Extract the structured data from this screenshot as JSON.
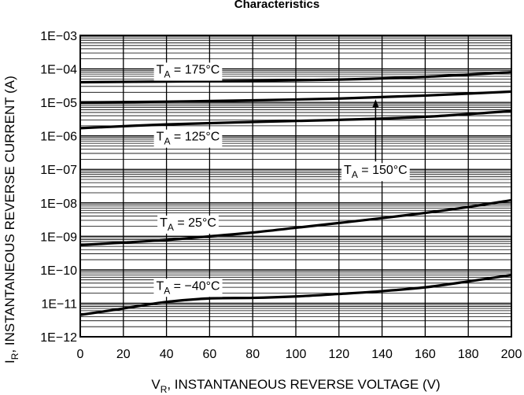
{
  "chart_data": {
    "type": "line",
    "title": "Characteristics",
    "xlabel": {
      "main": "V",
      "sub": "R",
      "rest": ", INSTANTANEOUS REVERSE VOLTAGE (V)"
    },
    "ylabel": {
      "main": "I",
      "sub": "R",
      "rest": ", INSTANTANEOUS REVERSE CURRENT (A)"
    },
    "x_ticks": [
      "0",
      "20",
      "40",
      "60",
      "80",
      "100",
      "120",
      "140",
      "160",
      "180",
      "200"
    ],
    "y_ticks": [
      "1E−12",
      "1E−11",
      "1E−10",
      "1E−09",
      "1E−08",
      "1E−07",
      "1E−06",
      "1E−05",
      "1E−04",
      "1E−03"
    ],
    "xlim": [
      0,
      200
    ],
    "ylim": [
      1e-12,
      0.001
    ],
    "y_scale": "log",
    "grid": true,
    "series": [
      {
        "name": "T_A = 175°C",
        "label_main": "T",
        "label_sub": "A",
        "label_rest": " = 175°C",
        "x": [
          0,
          40,
          80,
          120,
          160,
          200
        ],
        "y": [
          4e-05,
          4.2e-05,
          4.4e-05,
          4.8e-05,
          5.8e-05,
          8e-05
        ]
      },
      {
        "name": "T_A = 150°C",
        "label_main": "T",
        "label_sub": "A",
        "label_rest": " = 150°C",
        "x": [
          0,
          40,
          80,
          120,
          160,
          200
        ],
        "y": [
          1e-05,
          1.05e-05,
          1.15e-05,
          1.3e-05,
          1.6e-05,
          2.1e-05
        ]
      },
      {
        "name": "T_A = 125°C",
        "label_main": "T",
        "label_sub": "A",
        "label_rest": " = 125°C",
        "x": [
          0,
          40,
          80,
          120,
          160,
          200
        ],
        "y": [
          1.7e-06,
          2.2e-06,
          2.6e-06,
          3e-06,
          3.7e-06,
          5.5e-06
        ]
      },
      {
        "name": "T_A = 25°C",
        "label_main": "T",
        "label_sub": "A",
        "label_rest": " = 25°C",
        "x": [
          0,
          20,
          40,
          60,
          80,
          100,
          120,
          140,
          160,
          180,
          200
        ],
        "y": [
          5.5e-10,
          6.5e-10,
          7.8e-10,
          1e-09,
          1.3e-09,
          1.8e-09,
          2.5e-09,
          3.5e-09,
          5e-09,
          7.5e-09,
          1.2e-08
        ]
      },
      {
        "name": "T_A = −40°C",
        "label_main": "T",
        "label_sub": "A",
        "label_rest": " = −40°C",
        "x": [
          0,
          20,
          40,
          60,
          80,
          100,
          120,
          140,
          160,
          180,
          200
        ],
        "y": [
          4.5e-12,
          7e-12,
          1.1e-11,
          1.4e-11,
          1.45e-11,
          1.6e-11,
          1.9e-11,
          2.3e-11,
          3e-11,
          4.5e-11,
          7e-11
        ]
      }
    ],
    "annotations": [
      {
        "series": 0,
        "at_x": 50,
        "at_y": 0.0001
      },
      {
        "series": 2,
        "at_x": 50,
        "at_y": 1e-06
      },
      {
        "series": 1,
        "at_x": 137,
        "at_y": 1e-07,
        "arrow_to_y": 1.3e-05
      },
      {
        "series": 3,
        "at_x": 50,
        "at_y": 2.7e-09
      },
      {
        "series": 4,
        "at_x": 50,
        "at_y": 3.5e-11
      }
    ]
  }
}
